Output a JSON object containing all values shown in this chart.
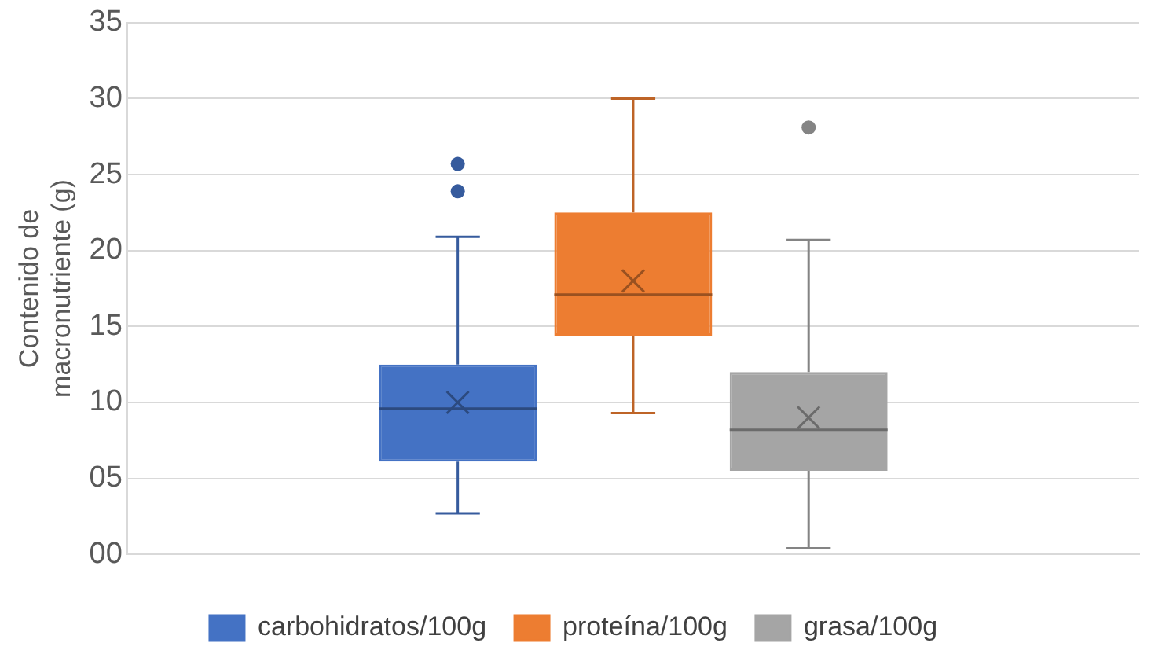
{
  "chart_data": {
    "type": "box",
    "ylabel": "Contenido de macronutriente (g)",
    "categories": [
      null
    ],
    "ylim": [
      0,
      35
    ],
    "yticks": [
      {
        "value": 0,
        "label": "00"
      },
      {
        "value": 5,
        "label": "05"
      },
      10,
      15,
      20,
      25,
      30,
      35
    ],
    "grid": "y",
    "legend": "bottom",
    "marker": "circle",
    "series": [
      {
        "name": "carbohidratos/100g",
        "color": "#4472c4",
        "boxes": [
          {
            "low": 2.7,
            "q1": 6.1,
            "median": 9.6,
            "q3": 12.5,
            "high": 20.9,
            "mean": 10.0,
            "outliers": [
              25.7,
              23.9
            ]
          }
        ]
      },
      {
        "name": "proteína/100g",
        "color": "#ed7d31",
        "boxes": [
          {
            "low": 9.3,
            "q1": 14.4,
            "median": 17.1,
            "q3": 22.5,
            "high": 30.0,
            "mean": 18.0
          }
        ]
      },
      {
        "name": "grasa/100g",
        "color": "#a5a5a5",
        "boxes": [
          {
            "low": 0.4,
            "q1": 5.5,
            "median": 8.2,
            "q3": 12.0,
            "high": 20.7,
            "mean": 9.0,
            "outliers": [
              28.1
            ]
          }
        ]
      }
    ]
  }
}
